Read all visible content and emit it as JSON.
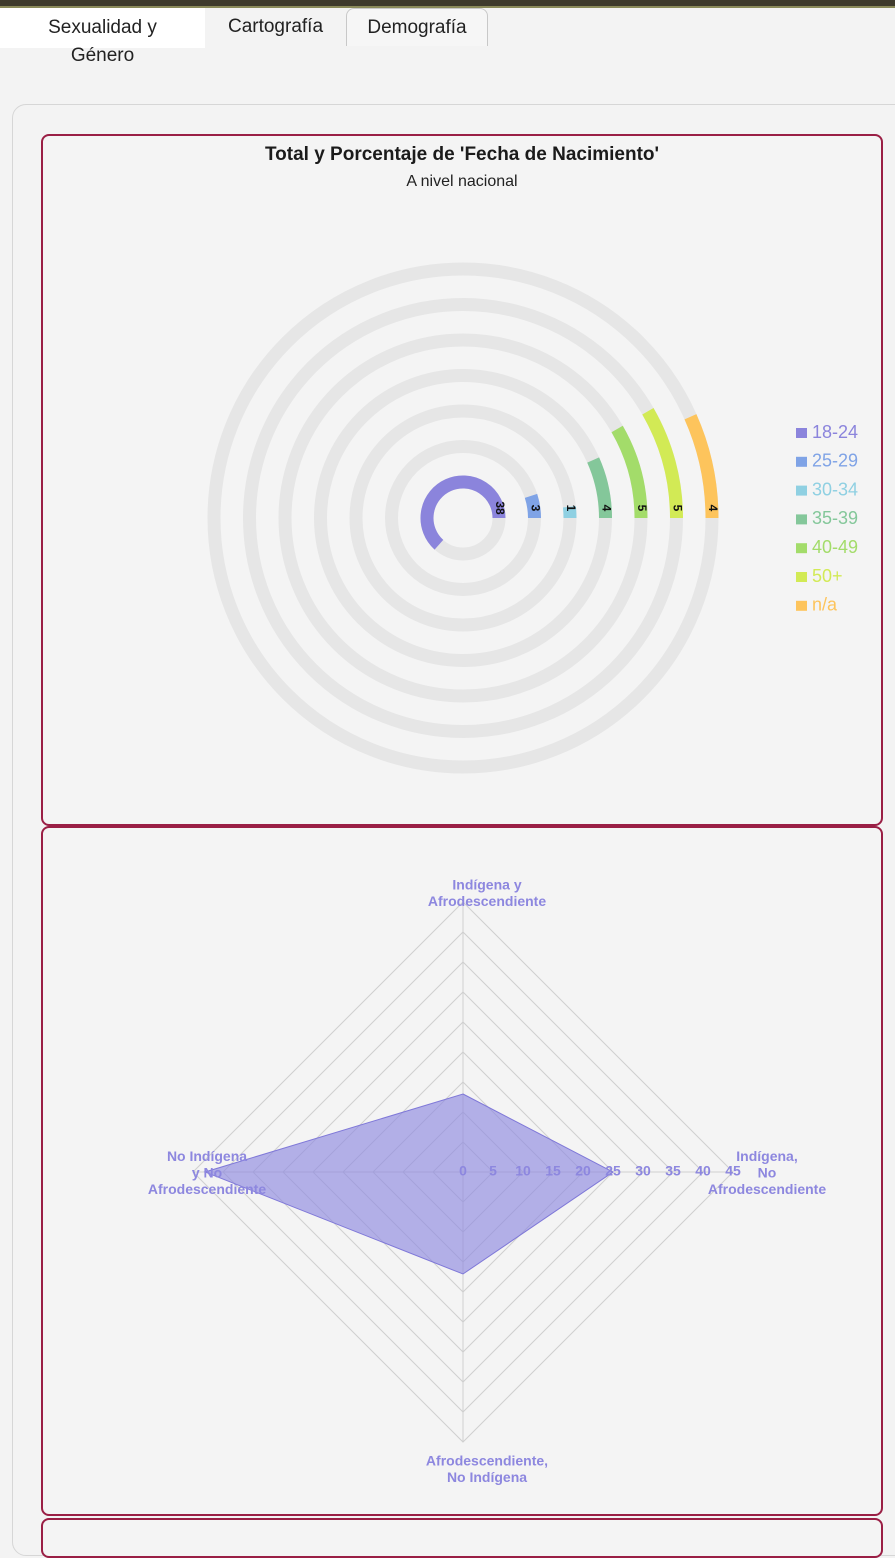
{
  "tabs": [
    {
      "label_line1": "Sexualidad y",
      "label_line2": "Género"
    },
    {
      "label": "Cartografía"
    },
    {
      "label": "Demografía"
    }
  ],
  "colors": {
    "accent_border": "#9a1f45",
    "track": "#e6e6e6",
    "radar_fill": "#8f8ae0",
    "radar_label": "#8d87df"
  },
  "chart_data": [
    {
      "type": "radial-bar",
      "title": "Total y Porcentaje de 'Fecha de Nacimiento'",
      "subtitle": "A nivel nacional",
      "legend_position": "right",
      "series": [
        {
          "name": "18-24",
          "value": 38,
          "color": "#8b84dc"
        },
        {
          "name": "25-29",
          "value": 3,
          "color": "#7fa3e6"
        },
        {
          "name": "30-34",
          "value": 1,
          "color": "#8fd0e2"
        },
        {
          "name": "35-39",
          "value": 4,
          "color": "#84c79a"
        },
        {
          "name": "40-49",
          "value": 5,
          "color": "#a3dc6a"
        },
        {
          "name": "50+",
          "value": 5,
          "color": "#d2ea55"
        },
        {
          "name": "n/a",
          "value": 4,
          "color": "#fdc45c"
        }
      ]
    },
    {
      "type": "radar",
      "axes": [
        {
          "label_lines": [
            "Indígena y",
            "Afrodescendiente"
          ],
          "value": 13
        },
        {
          "label_lines": [
            "Indígena,",
            "No",
            "Afrodescendiente"
          ],
          "value": 25
        },
        {
          "label_lines": [
            "Afrodescendiente,",
            "No Indígena"
          ],
          "value": 17
        },
        {
          "label_lines": [
            "No Indígena",
            "y No",
            "Afrodescendiente"
          ],
          "value": 43
        }
      ],
      "scale_max": 45,
      "tick_values": [
        0,
        5,
        10,
        15,
        20,
        25,
        30,
        35,
        40,
        45
      ]
    }
  ]
}
